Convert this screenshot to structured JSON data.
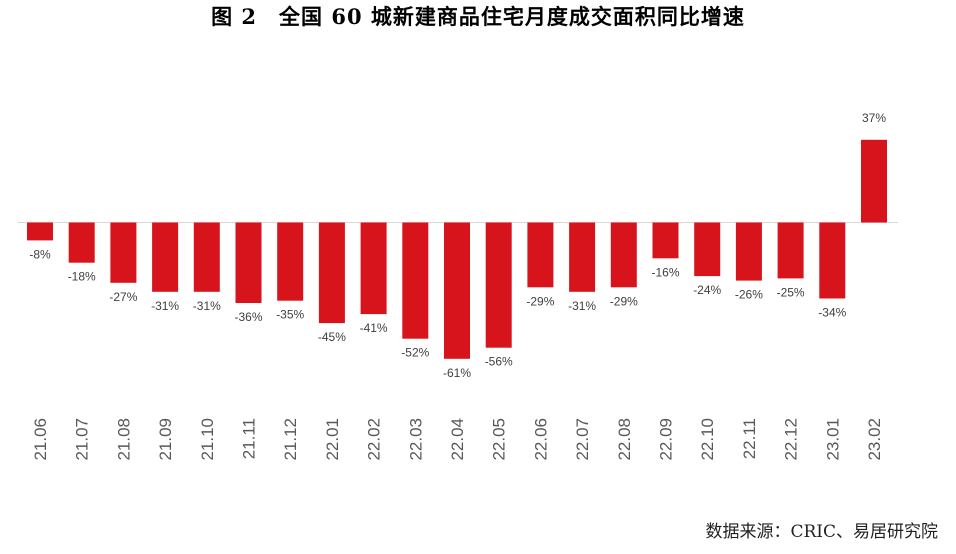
{
  "chart_data": {
    "type": "bar",
    "title": "图 2　全国 60 城新建商品住宅月度成交面积同比增速",
    "source": "数据来源：CRIC、易居研究院",
    "categories": [
      "21.06",
      "21.07",
      "21.08",
      "21.09",
      "21.10",
      "21.11",
      "21.12",
      "22.01",
      "22.02",
      "22.03",
      "22.04",
      "22.05",
      "22.06",
      "22.07",
      "22.08",
      "22.09",
      "22.10",
      "22.11",
      "22.12",
      "23.01",
      "23.02"
    ],
    "values": [
      -8,
      -18,
      -27,
      -31,
      -31,
      -36,
      -35,
      -45,
      -41,
      -52,
      -61,
      -56,
      -29,
      -31,
      -29,
      -16,
      -24,
      -26,
      -25,
      -34,
      37
    ],
    "labels": [
      "-8%",
      "-18%",
      "-27%",
      "-31%",
      "-31%",
      "-36%",
      "-35%",
      "-45%",
      "-41%",
      "-52%",
      "-61%",
      "-56%",
      "-29%",
      "-31%",
      "-29%",
      "-16%",
      "-24%",
      "-26%",
      "-25%",
      "-34%",
      "37%"
    ],
    "bar_color": "#d7141c",
    "grid": false,
    "legend": "none"
  }
}
